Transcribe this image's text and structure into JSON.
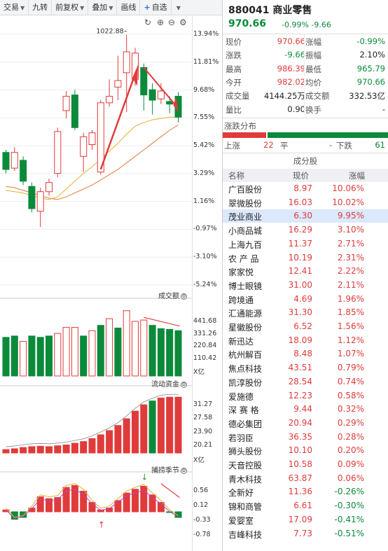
{
  "toolbar": {
    "items": [
      "交易",
      "九转",
      "前复权",
      "叠加",
      "画线",
      "自选"
    ]
  },
  "chart_panels": {
    "volume_title": "成交额",
    "fund_title": "流动资金",
    "season_title": "捕捞季节"
  },
  "chart_data": [
    {
      "type": "candlestick",
      "title": "",
      "peak_label": "1022.88",
      "right_axis_labels": [
        "13.94%",
        "11.81%",
        "9.68%",
        "7.55%",
        "5.42%",
        "3.29%",
        "1.16%",
        "-0.97%",
        "-3.10%",
        "-5.24%"
      ],
      "ylim_pct": [
        -5.24,
        13.94
      ],
      "candles_pct": [
        {
          "o": 4.9,
          "c": 3.6,
          "h": 5.1,
          "l": 3.3
        },
        {
          "o": 3.7,
          "c": 4.9,
          "h": 5.3,
          "l": 3.5
        },
        {
          "o": 4.3,
          "c": 2.7,
          "h": 4.6,
          "l": 2.4
        },
        {
          "o": 2.3,
          "c": 0.6,
          "h": 2.6,
          "l": 0.3
        },
        {
          "o": 0.4,
          "c": 1.9,
          "h": 2.2,
          "l": -0.8
        },
        {
          "o": 1.9,
          "c": 2.6,
          "h": 2.9,
          "l": 1.6
        },
        {
          "o": 3.3,
          "c": 6.5,
          "h": 6.8,
          "l": 3.0
        },
        {
          "o": 8.1,
          "c": 9.2,
          "h": 9.6,
          "l": 7.5
        },
        {
          "o": 9.3,
          "c": 6.8,
          "h": 9.7,
          "l": 6.6
        },
        {
          "o": 4.6,
          "c": 6.1,
          "h": 6.4,
          "l": 3.4
        },
        {
          "o": 5.5,
          "c": 6.4,
          "h": 6.6,
          "l": 5.1
        },
        {
          "o": 3.4,
          "c": 8.7,
          "h": 8.9,
          "l": 3.2
        },
        {
          "o": 8.7,
          "c": 9.2,
          "h": 10.5,
          "l": 8.4
        },
        {
          "o": 9.9,
          "c": 10.4,
          "h": 12.3,
          "l": 8.9
        },
        {
          "o": 11.0,
          "c": 12.6,
          "h": 13.9,
          "l": 8.0
        },
        {
          "o": 10.5,
          "c": 12.5,
          "h": 12.9,
          "l": 10.0
        },
        {
          "o": 11.4,
          "c": 9.3,
          "h": 11.7,
          "l": 8.1
        },
        {
          "o": 9.7,
          "c": 8.9,
          "h": 10.2,
          "l": 7.8
        },
        {
          "o": 9.0,
          "c": 9.6,
          "h": 10.2,
          "l": 8.6
        },
        {
          "o": 8.8,
          "c": 8.6,
          "h": 9.2,
          "l": 7.9
        },
        {
          "o": 9.2,
          "c": 7.6,
          "h": 9.5,
          "l": 7.2
        }
      ],
      "ma_fast_pct": [
        2.0,
        1.9,
        1.8,
        1.6,
        1.4,
        1.3,
        1.5,
        2.1,
        2.7,
        3.3,
        3.8,
        4.4,
        5.0,
        5.6,
        6.3,
        6.9,
        7.2,
        7.4,
        7.5,
        7.6,
        7.6
      ],
      "ma_slow_pct": [
        2.3,
        2.2,
        2.0,
        1.8,
        1.6,
        1.4,
        1.3,
        1.5,
        1.8,
        2.1,
        2.4,
        2.8,
        3.2,
        3.6,
        4.1,
        4.6,
        5.1,
        5.6,
        6.1,
        6.6,
        7.0
      ]
    },
    {
      "type": "bar",
      "title": "成交额",
      "right_axis_labels": [
        "441.68",
        "331.26",
        "220.84",
        "110.42",
        "X亿"
      ],
      "ylim": [
        0,
        552
      ],
      "values": [
        290,
        300,
        260,
        300,
        290,
        300,
        320,
        365,
        365,
        300,
        340,
        380,
        430,
        360,
        490,
        410,
        420,
        380,
        355,
        350,
        340
      ],
      "colors": [
        "g",
        "g",
        "r",
        "g",
        "g",
        "g",
        "r",
        "r",
        "r",
        "g",
        "r",
        "g",
        "r",
        "g",
        "r",
        "r",
        "r",
        "g",
        "g",
        "g",
        "g"
      ]
    },
    {
      "type": "bar",
      "title": "流动资金",
      "right_axis_labels": [
        "31.27",
        "27.58",
        "23.90",
        "20.21",
        "X亿"
      ],
      "ylim": [
        19.1,
        34.0
      ],
      "values": [
        19.9,
        20.1,
        20.4,
        20.6,
        20.7,
        20.6,
        20.8,
        21.0,
        21.4,
        21.8,
        22.5,
        23.4,
        24.4,
        25.6,
        27.2,
        29.0,
        30.5,
        31.4,
        32.1,
        32.3,
        32.3
      ],
      "colors": [
        "r",
        "r",
        "r",
        "r",
        "r",
        "r",
        "r",
        "r",
        "r",
        "r",
        "r",
        "r",
        "r",
        "r",
        "r",
        "r",
        "r",
        "g",
        "r",
        "r",
        "r"
      ]
    },
    {
      "type": "bar",
      "title": "捕捞季节",
      "right_axis_labels": [
        "0.56",
        "0.12",
        "-0.33",
        "-0.78"
      ],
      "ylim": [
        -0.95,
        0.95
      ],
      "values": [
        0.05,
        -0.2,
        -0.15,
        0.1,
        0.4,
        0.35,
        0.38,
        0.65,
        0.7,
        0.55,
        0.25,
        0.05,
        0.1,
        0.3,
        0.5,
        0.6,
        0.68,
        0.45,
        0.25,
        0.0,
        -0.15
      ],
      "colors": [
        "r",
        "g",
        "g",
        "r",
        "r",
        "r",
        "r",
        "r",
        "r",
        "r",
        "r",
        "r",
        "r",
        "r",
        "r",
        "r",
        "r",
        "r",
        "r",
        "g",
        "g"
      ]
    }
  ],
  "quote": {
    "code_name": "880041 商业零售",
    "price": "970.66",
    "change_pct": "-0.99%",
    "change": "-9.66",
    "rows": [
      {
        "l1": "现价",
        "v1": "970.66",
        "c1": "red",
        "l2": "涨幅",
        "v2": "-0.99%",
        "c2": "green"
      },
      {
        "l1": "涨跌",
        "v1": "-9.66",
        "c1": "green",
        "l2": "振幅",
        "v2": "2.10%",
        "c2": "dark"
      },
      {
        "l1": "最高",
        "v1": "986.39",
        "c1": "red",
        "l2": "最低",
        "v2": "965.79",
        "c2": "green"
      },
      {
        "l1": "今开",
        "v1": "982.02",
        "c1": "red",
        "l2": "均价",
        "v2": "970.66",
        "c2": "green"
      },
      {
        "l1": "成交量",
        "v1": "4144.25万",
        "c1": "dark",
        "l2": "成交额",
        "v2": "332.53亿",
        "c2": "dark"
      },
      {
        "l1": "量比",
        "v1": "0.90",
        "c1": "dark",
        "l2": "换手",
        "v2": "-",
        "c2": "dark"
      }
    ]
  },
  "distribution": {
    "title": "涨跌分布",
    "up_label": "上涨",
    "up": "22",
    "flat_label": "平",
    "flat": "-",
    "down_label": "下跌",
    "down": "61",
    "up_count": 22,
    "down_count": 61
  },
  "constituents": {
    "title": "成分股",
    "headers": [
      "名称",
      "现价",
      "涨幅"
    ],
    "rows": [
      {
        "name": "广百股份",
        "price": "8.97",
        "chg": "10.06%"
      },
      {
        "name": "翠微股份",
        "price": "16.03",
        "chg": "10.02%"
      },
      {
        "name": "茂业商业",
        "price": "6.30",
        "chg": "9.95%"
      },
      {
        "name": "小商品城",
        "price": "16.29",
        "chg": "3.10%"
      },
      {
        "name": "上海九百",
        "price": "11.37",
        "chg": "2.71%"
      },
      {
        "name": "农 产 品",
        "price": "10.19",
        "chg": "2.31%"
      },
      {
        "name": "家家悦",
        "price": "12.41",
        "chg": "2.22%"
      },
      {
        "name": "博士眼镜",
        "price": "31.00",
        "chg": "2.11%"
      },
      {
        "name": "跨境通",
        "price": "4.69",
        "chg": "1.96%"
      },
      {
        "name": "汇通能源",
        "price": "31.30",
        "chg": "1.85%"
      },
      {
        "name": "星徽股份",
        "price": "6.52",
        "chg": "1.56%"
      },
      {
        "name": "新迅达",
        "price": "18.09",
        "chg": "1.12%"
      },
      {
        "name": "杭州解百",
        "price": "8.48",
        "chg": "1.07%"
      },
      {
        "name": "焦点科技",
        "price": "43.51",
        "chg": "0.79%"
      },
      {
        "name": "凯淳股份",
        "price": "28.54",
        "chg": "0.74%"
      },
      {
        "name": "爱施德",
        "price": "12.23",
        "chg": "0.58%"
      },
      {
        "name": "深 赛 格",
        "price": "9.44",
        "chg": "0.32%"
      },
      {
        "name": "德必集团",
        "price": "20.94",
        "chg": "0.29%"
      },
      {
        "name": "若羽臣",
        "price": "36.35",
        "chg": "0.28%"
      },
      {
        "name": "狮头股份",
        "price": "10.10",
        "chg": "0.20%"
      },
      {
        "name": "天音控股",
        "price": "10.58",
        "chg": "0.09%"
      },
      {
        "name": "青木科技",
        "price": "63.87",
        "chg": "0.06%"
      },
      {
        "name": "全新好",
        "price": "11.36",
        "chg": "-0.26%"
      },
      {
        "name": "锦和商管",
        "price": "6.61",
        "chg": "-0.30%"
      },
      {
        "name": "爱婴室",
        "price": "17.09",
        "chg": "-0.41%"
      },
      {
        "name": "吉峰科技",
        "price": "7.73",
        "chg": "-0.51%"
      }
    ]
  },
  "colors": {
    "up": "#e03b3b",
    "down": "#0b8a3a",
    "selected_row": "#dce8fb"
  }
}
